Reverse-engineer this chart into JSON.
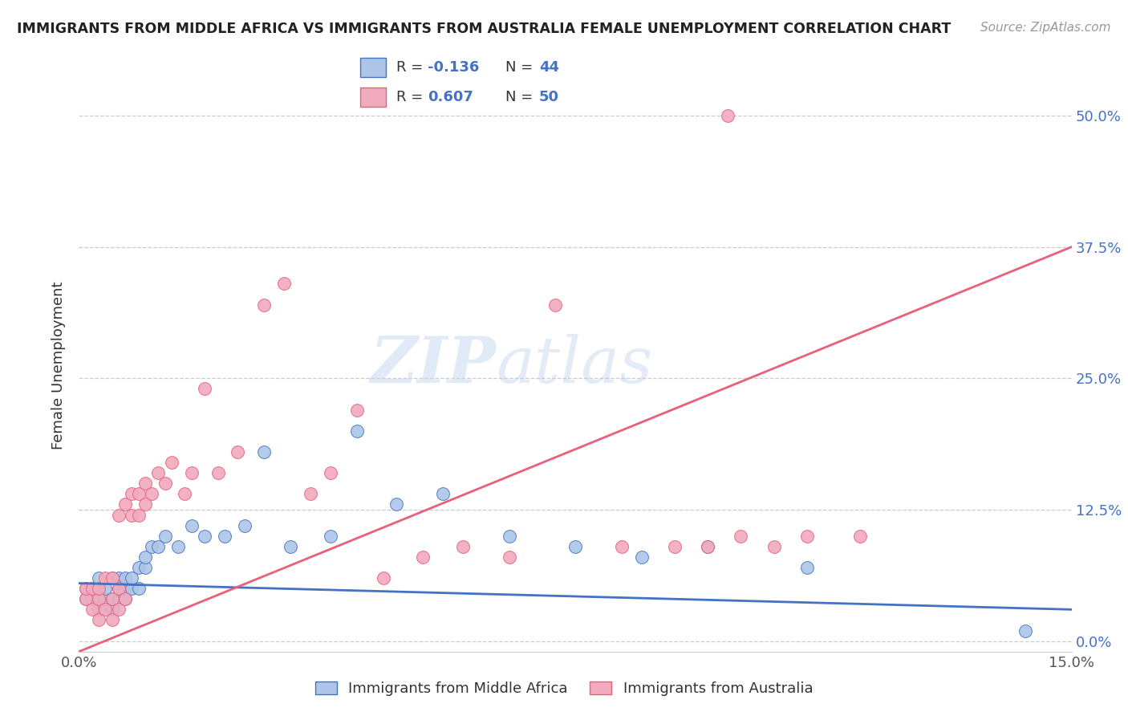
{
  "title": "IMMIGRANTS FROM MIDDLE AFRICA VS IMMIGRANTS FROM AUSTRALIA FEMALE UNEMPLOYMENT CORRELATION CHART",
  "source": "Source: ZipAtlas.com",
  "ylabel": "Female Unemployment",
  "xlim": [
    0.0,
    0.15
  ],
  "ylim": [
    -0.01,
    0.535
  ],
  "yticks": [
    0.0,
    0.125,
    0.25,
    0.375,
    0.5
  ],
  "ytick_labels": [
    "0.0%",
    "12.5%",
    "25.0%",
    "37.5%",
    "50.0%"
  ],
  "xticks": [
    0.0,
    0.05,
    0.1,
    0.15
  ],
  "xtick_labels": [
    "0.0%",
    "",
    "",
    "15.0%"
  ],
  "color_blue": "#adc6e8",
  "color_pink": "#f2aabe",
  "line_color_blue": "#4472c4",
  "line_color_pink": "#e8607a",
  "watermark_zip": "ZIP",
  "watermark_atlas": "atlas",
  "series1_label": "Immigrants from Middle Africa",
  "series2_label": "Immigrants from Australia",
  "blue_x": [
    0.001,
    0.001,
    0.002,
    0.002,
    0.003,
    0.003,
    0.003,
    0.004,
    0.004,
    0.005,
    0.005,
    0.005,
    0.006,
    0.006,
    0.006,
    0.007,
    0.007,
    0.007,
    0.008,
    0.008,
    0.009,
    0.009,
    0.01,
    0.01,
    0.011,
    0.012,
    0.013,
    0.015,
    0.017,
    0.019,
    0.022,
    0.025,
    0.028,
    0.032,
    0.038,
    0.042,
    0.048,
    0.055,
    0.065,
    0.075,
    0.085,
    0.095,
    0.11,
    0.143
  ],
  "blue_y": [
    0.04,
    0.05,
    0.04,
    0.05,
    0.03,
    0.05,
    0.06,
    0.04,
    0.05,
    0.03,
    0.04,
    0.06,
    0.04,
    0.05,
    0.06,
    0.04,
    0.05,
    0.06,
    0.05,
    0.06,
    0.07,
    0.05,
    0.07,
    0.08,
    0.09,
    0.09,
    0.1,
    0.09,
    0.11,
    0.1,
    0.1,
    0.11,
    0.18,
    0.09,
    0.1,
    0.2,
    0.13,
    0.14,
    0.1,
    0.09,
    0.08,
    0.09,
    0.07,
    0.01
  ],
  "pink_x": [
    0.001,
    0.001,
    0.002,
    0.002,
    0.003,
    0.003,
    0.003,
    0.004,
    0.004,
    0.005,
    0.005,
    0.005,
    0.006,
    0.006,
    0.006,
    0.007,
    0.007,
    0.008,
    0.008,
    0.009,
    0.009,
    0.01,
    0.01,
    0.011,
    0.012,
    0.013,
    0.014,
    0.016,
    0.017,
    0.019,
    0.021,
    0.024,
    0.028,
    0.031,
    0.035,
    0.038,
    0.042,
    0.046,
    0.052,
    0.058,
    0.065,
    0.072,
    0.082,
    0.09,
    0.095,
    0.098,
    0.1,
    0.105,
    0.11,
    0.118
  ],
  "pink_y": [
    0.04,
    0.05,
    0.03,
    0.05,
    0.02,
    0.04,
    0.05,
    0.03,
    0.06,
    0.02,
    0.04,
    0.06,
    0.03,
    0.05,
    0.12,
    0.04,
    0.13,
    0.14,
    0.12,
    0.14,
    0.12,
    0.13,
    0.15,
    0.14,
    0.16,
    0.15,
    0.17,
    0.14,
    0.16,
    0.24,
    0.16,
    0.18,
    0.32,
    0.34,
    0.14,
    0.16,
    0.22,
    0.06,
    0.08,
    0.09,
    0.08,
    0.32,
    0.09,
    0.09,
    0.09,
    0.5,
    0.1,
    0.09,
    0.1,
    0.1
  ],
  "blue_trend_x": [
    0.0,
    0.15
  ],
  "blue_trend_y": [
    0.055,
    0.03
  ],
  "pink_trend_x": [
    0.0,
    0.15
  ],
  "pink_trend_y": [
    -0.01,
    0.375
  ]
}
